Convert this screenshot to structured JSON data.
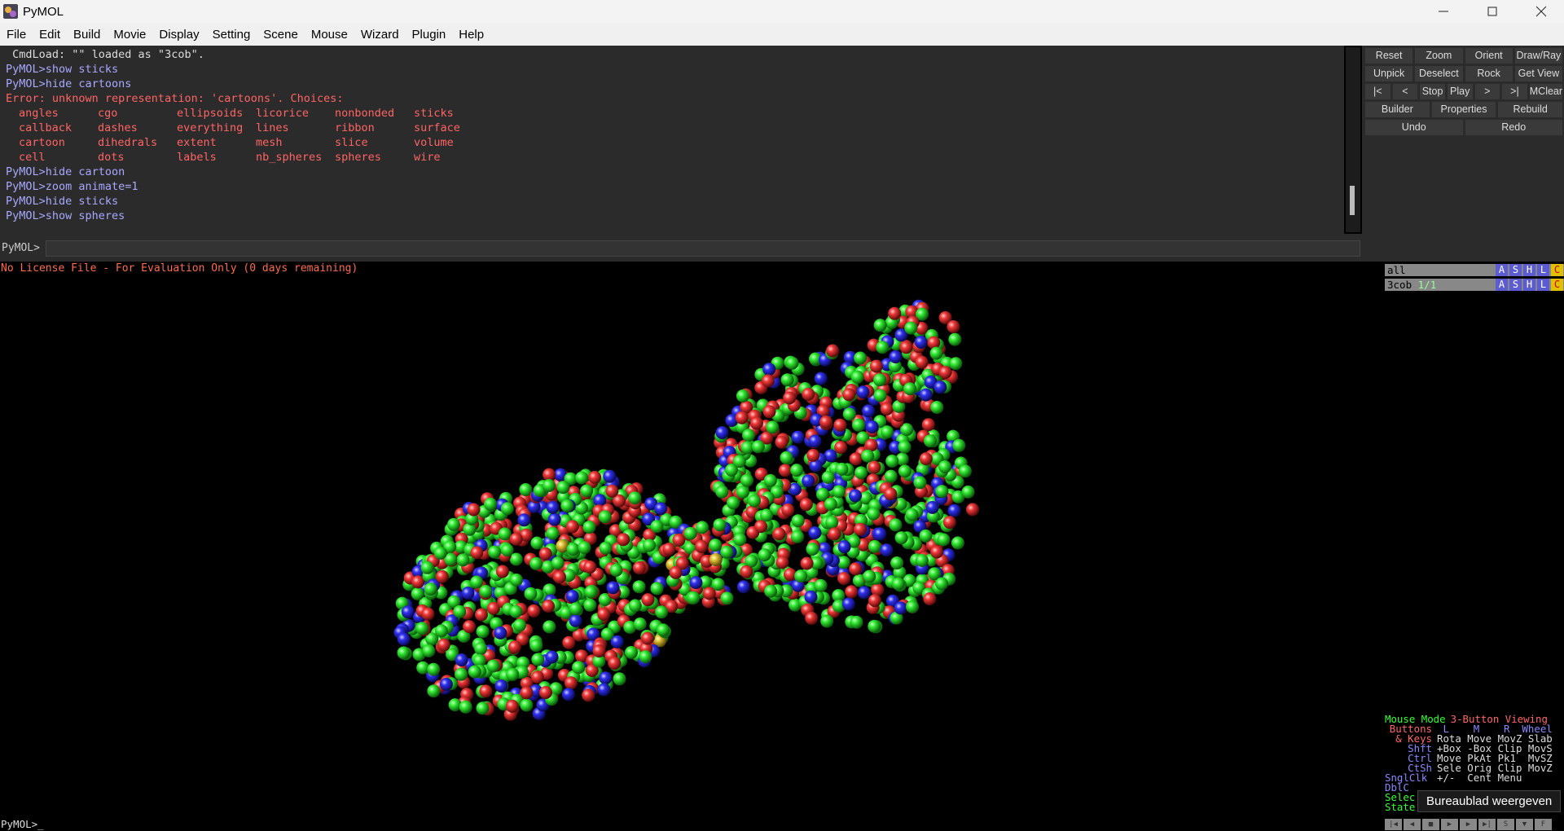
{
  "window": {
    "title": "PyMOL"
  },
  "menu": [
    "File",
    "Edit",
    "Build",
    "Movie",
    "Display",
    "Setting",
    "Scene",
    "Mouse",
    "Wizard",
    "Plugin",
    "Help"
  ],
  "console": {
    "log": [
      " CmdLoad: \"\" loaded as \"3cob\".",
      "PyMOL>show sticks",
      "PyMOL>hide cartoons"
    ],
    "error": "Error: unknown representation: 'cartoons'. Choices:",
    "choices": [
      [
        "angles",
        "cgo",
        "ellipsoids",
        "licorice",
        "nonbonded",
        "sticks"
      ],
      [
        "callback",
        "dashes",
        "everything",
        "lines",
        "ribbon",
        "surface"
      ],
      [
        "cartoon",
        "dihedrals",
        "extent",
        "mesh",
        "slice",
        "volume"
      ],
      [
        "cell",
        "dots",
        "labels",
        "nb_spheres",
        "spheres",
        "wire"
      ]
    ],
    "log_after": [
      "PyMOL>hide cartoon",
      "PyMOL>zoom animate=1",
      "PyMOL>hide sticks",
      "PyMOL>show spheres"
    ]
  },
  "command_prompt": "PyMOL>",
  "buttons": [
    [
      "Reset",
      "Zoom",
      "Orient",
      "Draw/Ray"
    ],
    [
      "Unpick",
      "Deselect",
      "Rock",
      "Get View"
    ],
    [
      "|<",
      "<",
      "Stop",
      "Play",
      ">",
      ">|",
      "MClear"
    ],
    [
      "Builder",
      "Properties",
      "Rebuild"
    ],
    [
      "Undo",
      "Redo"
    ]
  ],
  "license_notice": "No License File - For Evaluation Only (0 days remaining)",
  "objects": [
    {
      "name": "all"
    },
    {
      "name": "3cob",
      "state": "1/1"
    }
  ],
  "object_buttons": [
    "A",
    "S",
    "H",
    "L",
    "C"
  ],
  "mouse_panel": [
    [
      "Mouse Mode",
      "3-Button Viewing"
    ],
    [
      "Buttons",
      " L    M    R  Wheel"
    ],
    [
      "& Keys",
      "Rota Move MovZ Slab"
    ],
    [
      "Shft",
      "+Box -Box Clip MovS"
    ],
    [
      "Ctrl",
      "Move PkAt Pk1  MvSZ"
    ],
    [
      "CtSh",
      "Sele Orig Clip MovZ"
    ],
    [
      "SnglClk",
      "+/-  Cent Menu"
    ],
    [
      "DblC",
      ""
    ],
    [
      "Selec",
      ""
    ],
    [
      "State",
      ""
    ]
  ],
  "tooltip": "Bureaublad weergeven",
  "bottom_prompt": "PyMOL>_",
  "playback": [
    "|◀",
    "◀",
    "■",
    "▶",
    "▶",
    "▶|",
    "S",
    "▼",
    "F"
  ]
}
